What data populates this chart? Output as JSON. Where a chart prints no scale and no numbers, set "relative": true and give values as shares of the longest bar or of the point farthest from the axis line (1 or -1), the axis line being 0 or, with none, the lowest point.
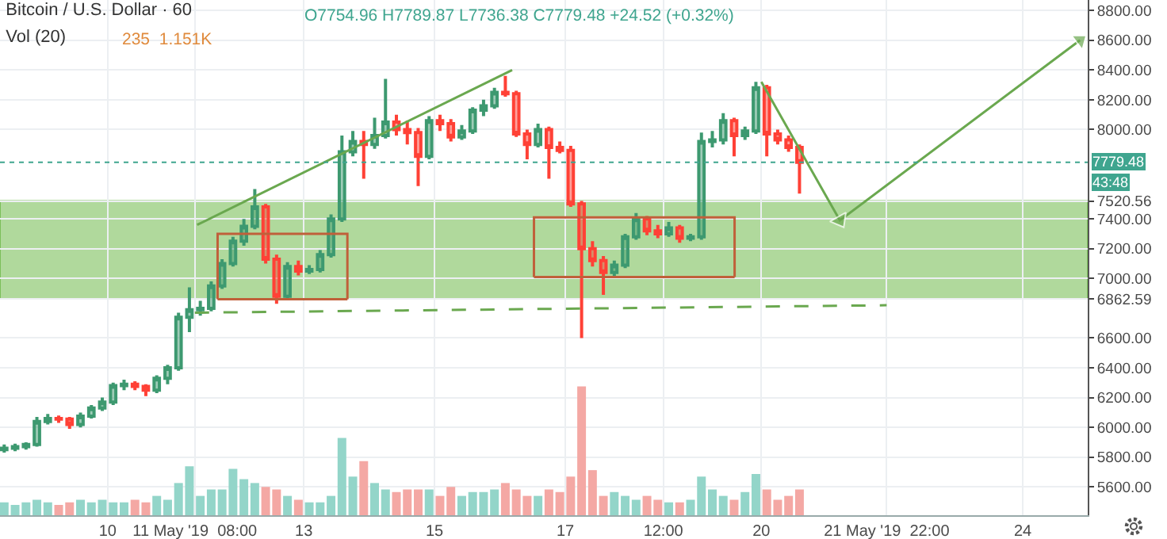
{
  "chart_data": [
    {
      "type": "candlestick",
      "title": "Bitcoin / U.S. Dollar · 60",
      "annotations": [
        "O7754.96 H7789.87 L7736.38 C7779.48 +24.52 (+0.32%)",
        "43:48"
      ],
      "x": [
        "2019-05-08T10:00",
        "2019-05-08T14:00",
        "2019-05-08T18:00",
        "2019-05-08T22:00",
        "2019-05-09T02:00",
        "2019-05-09T06:00",
        "2019-05-09T10:00",
        "2019-05-09T14:00",
        "2019-05-09T18:00",
        "2019-05-09T22:00",
        "2019-05-10T02:00",
        "2019-05-10T06:00",
        "2019-05-10T10:00",
        "2019-05-10T14:00",
        "2019-05-10T18:00",
        "2019-05-10T22:00",
        "2019-05-11T02:00",
        "2019-05-11T06:00",
        "2019-05-11T10:00",
        "2019-05-11T14:00",
        "2019-05-11T18:00",
        "2019-05-11T22:00",
        "2019-05-12T02:00",
        "2019-05-12T06:00",
        "2019-05-12T10:00",
        "2019-05-12T14:00",
        "2019-05-12T18:00",
        "2019-05-12T22:00",
        "2019-05-13T02:00",
        "2019-05-13T06:00",
        "2019-05-13T10:00",
        "2019-05-13T14:00",
        "2019-05-13T18:00",
        "2019-05-13T22:00",
        "2019-05-14T02:00",
        "2019-05-14T06:00",
        "2019-05-14T10:00",
        "2019-05-14T14:00",
        "2019-05-14T18:00",
        "2019-05-14T22:00",
        "2019-05-15T02:00",
        "2019-05-15T06:00",
        "2019-05-15T10:00",
        "2019-05-15T14:00",
        "2019-05-15T18:00",
        "2019-05-15T22:00",
        "2019-05-16T02:00",
        "2019-05-16T06:00",
        "2019-05-16T10:00",
        "2019-05-16T14:00",
        "2019-05-16T18:00",
        "2019-05-16T22:00",
        "2019-05-17T02:00",
        "2019-05-17T06:00",
        "2019-05-17T10:00",
        "2019-05-17T14:00",
        "2019-05-17T18:00",
        "2019-05-17T22:00",
        "2019-05-18T02:00",
        "2019-05-18T06:00",
        "2019-05-18T10:00",
        "2019-05-18T14:00",
        "2019-05-18T18:00",
        "2019-05-18T22:00",
        "2019-05-19T02:00",
        "2019-05-19T06:00",
        "2019-05-19T10:00",
        "2019-05-19T14:00",
        "2019-05-19T18:00",
        "2019-05-19T22:00",
        "2019-05-20T02:00",
        "2019-05-20T06:00",
        "2019-05-20T10:00",
        "2019-05-20T14:00"
      ],
      "ohlc": [
        [
          5850,
          5885,
          5830,
          5860
        ],
        [
          5860,
          5890,
          5840,
          5870
        ],
        [
          5870,
          5900,
          5850,
          5885
        ],
        [
          5885,
          6070,
          5870,
          6040
        ],
        [
          6040,
          6090,
          6020,
          6060
        ],
        [
          6060,
          6080,
          6030,
          6055
        ],
        [
          6055,
          6070,
          5990,
          6020
        ],
        [
          6020,
          6100,
          6000,
          6075
        ],
        [
          6075,
          6150,
          6060,
          6130
        ],
        [
          6130,
          6200,
          6110,
          6170
        ],
        [
          6170,
          6300,
          6150,
          6280
        ],
        [
          6280,
          6320,
          6250,
          6290
        ],
        [
          6290,
          6310,
          6250,
          6275
        ],
        [
          6275,
          6290,
          6210,
          6250
        ],
        [
          6250,
          6350,
          6230,
          6330
        ],
        [
          6330,
          6420,
          6290,
          6400
        ],
        [
          6400,
          6770,
          6380,
          6740
        ],
        [
          6740,
          6940,
          6640,
          6790
        ],
        [
          6790,
          6850,
          6750,
          6800
        ],
        [
          6800,
          6980,
          6780,
          6950
        ],
        [
          6950,
          7130,
          6930,
          7100
        ],
        [
          7100,
          7280,
          7080,
          7250
        ],
        [
          7250,
          7400,
          7220,
          7350
        ],
        [
          7350,
          7600,
          7330,
          7480
        ],
        [
          7480,
          7500,
          7100,
          7130
        ],
        [
          7130,
          7160,
          6830,
          6880
        ],
        [
          6880,
          7110,
          6860,
          7080
        ],
        [
          7080,
          7120,
          7020,
          7050
        ],
        [
          7050,
          7090,
          7030,
          7060
        ],
        [
          7060,
          7190,
          7040,
          7160
        ],
        [
          7160,
          7430,
          7140,
          7400
        ],
        [
          7400,
          7960,
          7380,
          7850
        ],
        [
          7850,
          7990,
          7820,
          7920
        ],
        [
          7920,
          7990,
          7670,
          7900
        ],
        [
          7900,
          8080,
          7870,
          7960
        ],
        [
          7960,
          8340,
          7940,
          8050
        ],
        [
          8050,
          8100,
          7960,
          8000
        ],
        [
          8000,
          8060,
          7900,
          7980
        ],
        [
          7980,
          8010,
          7620,
          7820
        ],
        [
          7820,
          8090,
          7800,
          8060
        ],
        [
          8060,
          8100,
          7990,
          8040
        ],
        [
          8040,
          8070,
          7920,
          7950
        ],
        [
          7950,
          8030,
          7930,
          7990
        ],
        [
          7990,
          8150,
          7970,
          8130
        ],
        [
          8130,
          8200,
          8090,
          8160
        ],
        [
          8160,
          8280,
          8140,
          8250
        ],
        [
          8250,
          8360,
          8220,
          8240
        ],
        [
          8240,
          8260,
          7950,
          7970
        ],
        [
          7970,
          8000,
          7800,
          7900
        ],
        [
          7900,
          8040,
          7880,
          8000
        ],
        [
          8000,
          8020,
          7670,
          7880
        ],
        [
          7880,
          7920,
          7840,
          7860
        ],
        [
          7860,
          7890,
          7480,
          7500
        ],
        [
          7500,
          7520,
          6600,
          7200
        ],
        [
          7200,
          7250,
          7080,
          7120
        ],
        [
          7120,
          7150,
          6890,
          7040
        ],
        [
          7040,
          7120,
          7010,
          7090
        ],
        [
          7090,
          7300,
          7070,
          7280
        ],
        [
          7280,
          7440,
          7260,
          7400
        ],
        [
          7400,
          7420,
          7290,
          7320
        ],
        [
          7320,
          7360,
          7270,
          7300
        ],
        [
          7300,
          7380,
          7280,
          7340
        ],
        [
          7340,
          7360,
          7240,
          7270
        ],
        [
          7270,
          7300,
          7250,
          7280
        ],
        [
          7280,
          7980,
          7260,
          7920
        ],
        [
          7920,
          7990,
          7880,
          7930
        ],
        [
          7930,
          8110,
          7900,
          8060
        ],
        [
          8060,
          8080,
          7820,
          7960
        ],
        [
          7960,
          8020,
          7930,
          7990
        ],
        [
          7990,
          8320,
          7970,
          8280
        ],
        [
          8280,
          8300,
          7820,
          7970
        ],
        [
          7970,
          8000,
          7900,
          7930
        ],
        [
          7930,
          7960,
          7850,
          7880
        ],
        [
          7880,
          7900,
          7570,
          7779.48
        ]
      ],
      "series": [
        {
          "type": "line",
          "color": "#6aa84f",
          "line_style": "solid",
          "x": [
            "2019-05-11T08:50",
            "2019-05-16T04:30"
          ],
          "values": [
            7360,
            8400
          ]
        },
        {
          "type": "line",
          "color": "#6aa84f",
          "line_style": "dashed",
          "x": [
            "2019-05-11T08:00",
            "2019-05-21T22:00"
          ],
          "values": [
            6770,
            6820
          ]
        },
        {
          "type": "line",
          "color": "#6aa84f",
          "line_style": "solid",
          "marker": "triangle",
          "x": [
            "2019-05-20T00:00",
            "2019-05-21T04:50",
            "2019-05-24T21:00"
          ],
          "values": [
            8320,
            7390,
            8600
          ]
        },
        {
          "type": "line",
          "color": "#c0603a",
          "line_style": "solid",
          "x": [
            "2019-05-11T16:20",
            "2019-05-11T16:21",
            "2019-05-13T16:00",
            "2019-05-13T16:01"
          ],
          "values": [
            6860,
            7300,
            7300,
            6860
          ]
        },
        {
          "type": "line",
          "color": "#c0603a",
          "line_style": "solid",
          "x": [
            "2019-05-11T16:20",
            "2019-05-13T16:01"
          ],
          "values": [
            6860,
            6860
          ]
        },
        {
          "type": "line",
          "color": "#c0603a",
          "line_style": "solid",
          "x": [
            "2019-05-16T12:30",
            "2019-05-16T12:31",
            "2019-05-19T14:10",
            "2019-05-19T14:11"
          ],
          "values": [
            7010,
            7410,
            7410,
            7010
          ]
        },
        {
          "type": "line",
          "color": "#c0603a",
          "line_style": "solid",
          "x": [
            "2019-05-16T12:30",
            "2019-05-19T14:11"
          ],
          "values": [
            7010,
            7010
          ]
        }
      ],
      "bands": [
        {
          "axis": "y",
          "from": 6862.59,
          "to": 7520.56,
          "color": "#7cbf5a"
        }
      ],
      "ref_lines": [
        {
          "axis": "y",
          "value": 7779.48,
          "label": "7779.48",
          "color": "#3fa58f",
          "line_style": "dotted"
        }
      ],
      "xlim": [
        "2019-05-08T08:27",
        "2019-05-24T23:50"
      ],
      "xticks": [
        {
          "value": "2019-05-10",
          "label": "10"
        },
        {
          "value": "2019-05-11T08:00",
          "label": "11 May '19  08:00"
        },
        {
          "value": "2019-05-13",
          "label": "13"
        },
        {
          "value": "2019-05-15",
          "label": "15"
        },
        {
          "value": "2019-05-17",
          "label": "17"
        },
        {
          "value": "2019-05-18T12:00",
          "label": "12:00"
        },
        {
          "value": "2019-05-20",
          "label": "20"
        },
        {
          "value": "2019-05-21T22:00",
          "label": "21 May '19  22:00"
        },
        {
          "value": "2019-05-24",
          "label": "24"
        }
      ],
      "ylim": [
        5410,
        8870
      ],
      "yticks": [
        {
          "value": 5600,
          "label": "5600.00"
        },
        {
          "value": 5800,
          "label": "5800.00"
        },
        {
          "value": 6000,
          "label": "6000.00"
        },
        {
          "value": 6200,
          "label": "6200.00"
        },
        {
          "value": 6400,
          "label": "6400.00"
        },
        {
          "value": 6600,
          "label": "6600.00"
        },
        {
          "value": 6862.59,
          "label": "6862.59"
        },
        {
          "value": 7000,
          "label": "7000.00"
        },
        {
          "value": 7200,
          "label": "7200.00"
        },
        {
          "value": 7400,
          "label": "7400.00"
        },
        {
          "value": 7520.56,
          "label": "7520.56"
        },
        {
          "value": 8000,
          "label": "8000.00"
        },
        {
          "value": 8200,
          "label": "8200.00"
        },
        {
          "value": 8400,
          "label": "8400.00"
        },
        {
          "value": 8600,
          "label": "8600.00"
        },
        {
          "value": 8800,
          "label": "8800.00"
        }
      ],
      "grid": true
    },
    {
      "type": "bar",
      "relative": true,
      "title": "Vol (20)",
      "annotations": [
        "235  1.151K"
      ],
      "tick_labels": false,
      "x": [
        "2019-05-08T10:00",
        "2019-05-08T14:00",
        "2019-05-08T18:00",
        "2019-05-08T22:00",
        "2019-05-09T02:00",
        "2019-05-09T06:00",
        "2019-05-09T10:00",
        "2019-05-09T14:00",
        "2019-05-09T18:00",
        "2019-05-09T22:00",
        "2019-05-10T02:00",
        "2019-05-10T06:00",
        "2019-05-10T10:00",
        "2019-05-10T14:00",
        "2019-05-10T18:00",
        "2019-05-10T22:00",
        "2019-05-11T02:00",
        "2019-05-11T06:00",
        "2019-05-11T10:00",
        "2019-05-11T14:00",
        "2019-05-11T18:00",
        "2019-05-11T22:00",
        "2019-05-12T02:00",
        "2019-05-12T06:00",
        "2019-05-12T10:00",
        "2019-05-12T14:00",
        "2019-05-12T18:00",
        "2019-05-12T22:00",
        "2019-05-13T02:00",
        "2019-05-13T06:00",
        "2019-05-13T10:00",
        "2019-05-13T14:00",
        "2019-05-13T18:00",
        "2019-05-13T22:00",
        "2019-05-14T02:00",
        "2019-05-14T06:00",
        "2019-05-14T10:00",
        "2019-05-14T14:00",
        "2019-05-14T18:00",
        "2019-05-14T22:00",
        "2019-05-15T02:00",
        "2019-05-15T06:00",
        "2019-05-15T10:00",
        "2019-05-15T14:00",
        "2019-05-15T18:00",
        "2019-05-15T22:00",
        "2019-05-16T02:00",
        "2019-05-16T06:00",
        "2019-05-16T10:00",
        "2019-05-16T14:00",
        "2019-05-16T18:00",
        "2019-05-16T22:00",
        "2019-05-17T02:00",
        "2019-05-17T06:00",
        "2019-05-17T10:00",
        "2019-05-17T14:00",
        "2019-05-17T18:00",
        "2019-05-17T22:00",
        "2019-05-18T02:00",
        "2019-05-18T06:00",
        "2019-05-18T10:00",
        "2019-05-18T14:00",
        "2019-05-18T18:00",
        "2019-05-18T22:00",
        "2019-05-19T02:00",
        "2019-05-19T06:00",
        "2019-05-19T10:00",
        "2019-05-19T14:00",
        "2019-05-19T18:00",
        "2019-05-19T22:00",
        "2019-05-20T02:00",
        "2019-05-20T06:00",
        "2019-05-20T10:00",
        "2019-05-20T14:00"
      ],
      "values": [
        0.1,
        0.08,
        0.1,
        0.12,
        0.1,
        0.08,
        0.1,
        0.12,
        0.1,
        0.12,
        0.1,
        0.1,
        0.12,
        0.1,
        0.15,
        0.12,
        0.25,
        0.38,
        0.15,
        0.2,
        0.2,
        0.36,
        0.28,
        0.25,
        0.22,
        0.2,
        0.15,
        0.12,
        0.1,
        0.1,
        0.15,
        0.6,
        0.3,
        0.42,
        0.25,
        0.2,
        0.18,
        0.2,
        0.2,
        0.2,
        0.15,
        0.22,
        0.15,
        0.18,
        0.18,
        0.2,
        0.25,
        0.2,
        0.15,
        0.15,
        0.2,
        0.18,
        0.3,
        1,
        0.35,
        0.15,
        0.18,
        0.15,
        0.12,
        0.15,
        0.12,
        0.1,
        0.1,
        0.12,
        0.3,
        0.2,
        0.15,
        0.12,
        0.18,
        0.32,
        0.2,
        0.12,
        0.15,
        0.2
      ],
      "colors": [
        "#93d5c9",
        "#93d5c9",
        "#93d5c9",
        "#93d5c9",
        "#93d5c9",
        "#f4a8a4",
        "#f4a8a4",
        "#93d5c9",
        "#93d5c9",
        "#93d5c9",
        "#93d5c9",
        "#93d5c9",
        "#f4a8a4",
        "#f4a8a4",
        "#93d5c9",
        "#93d5c9",
        "#93d5c9",
        "#93d5c9",
        "#93d5c9",
        "#93d5c9",
        "#93d5c9",
        "#93d5c9",
        "#93d5c9",
        "#93d5c9",
        "#f4a8a4",
        "#f4a8a4",
        "#93d5c9",
        "#f4a8a4",
        "#93d5c9",
        "#93d5c9",
        "#93d5c9",
        "#93d5c9",
        "#93d5c9",
        "#f4a8a4",
        "#93d5c9",
        "#93d5c9",
        "#f4a8a4",
        "#f4a8a4",
        "#f4a8a4",
        "#93d5c9",
        "#f4a8a4",
        "#f4a8a4",
        "#93d5c9",
        "#93d5c9",
        "#93d5c9",
        "#93d5c9",
        "#f4a8a4",
        "#f4a8a4",
        "#f4a8a4",
        "#93d5c9",
        "#f4a8a4",
        "#f4a8a4",
        "#f4a8a4",
        "#f4a8a4",
        "#f4a8a4",
        "#f4a8a4",
        "#93d5c9",
        "#93d5c9",
        "#93d5c9",
        "#f4a8a4",
        "#f4a8a4",
        "#93d5c9",
        "#f4a8a4",
        "#93d5c9",
        "#93d5c9",
        "#93d5c9",
        "#93d5c9",
        "#f4a8a4",
        "#93d5c9",
        "#93d5c9",
        "#f4a8a4",
        "#f4a8a4",
        "#f4a8a4",
        "#f4a8a4"
      ],
      "xlim": [
        "2019-05-08T08:27",
        "2019-05-24T23:50"
      ]
    }
  ]
}
